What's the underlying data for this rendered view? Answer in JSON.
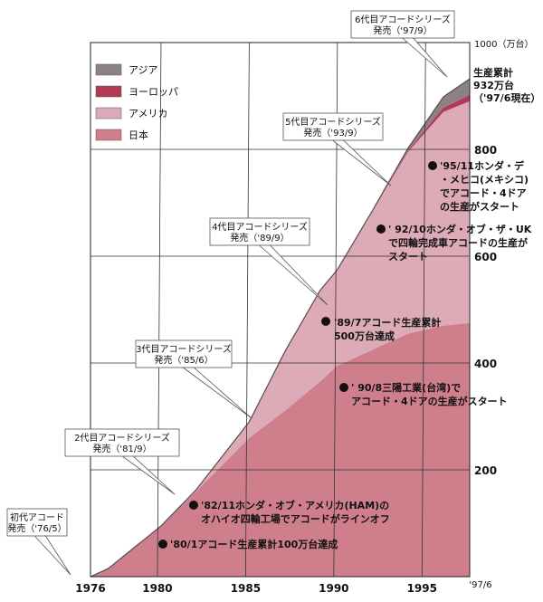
{
  "chart_data": {
    "type": "area",
    "stacked": true,
    "x_range": [
      1976,
      1997.5
    ],
    "ylim": [
      0,
      1000
    ],
    "y_unit_label": "1000（万台）",
    "x_ticks": [
      "1976",
      "1980",
      "1985",
      "1990",
      "1995",
      "'97/6"
    ],
    "x_tick_values": [
      1976,
      1980,
      1985,
      1990,
      1995,
      1997.5
    ],
    "y_ticks": [
      {
        "label": "200",
        "value": 200
      },
      {
        "label": "400",
        "value": 400
      },
      {
        "label": "600",
        "value": 600
      },
      {
        "label": "800",
        "value": 800
      }
    ],
    "grid": true,
    "legend_position": "top-left",
    "series": [
      {
        "name": "日本",
        "color": "#cf7f8c",
        "x": [
          1976,
          1977,
          1980,
          1982,
          1985,
          1987,
          1989,
          1990,
          1992,
          1994,
          1996,
          1997.5
        ],
        "values": [
          0,
          15,
          95,
          160,
          260,
          310,
          365,
          395,
          425,
          455,
          470,
          475
        ]
      },
      {
        "name": "アメリカ",
        "color": "#ddaab8",
        "x": [
          1976,
          1980,
          1982,
          1985,
          1987,
          1989,
          1990,
          1992,
          1994,
          1996,
          1997.5
        ],
        "values": [
          0,
          0,
          3,
          30,
          110,
          170,
          180,
          260,
          340,
          400,
          415
        ]
      },
      {
        "name": "ヨーロッパ",
        "color": "#b23a55",
        "x": [
          1976,
          1992,
          1994,
          1996,
          1997.5
        ],
        "values": [
          0,
          0,
          2,
          8,
          12
        ]
      },
      {
        "name": "アジア",
        "color": "#8e8185",
        "x": [
          1976,
          1990,
          1992,
          1994,
          1996,
          1997.5
        ],
        "values": [
          0,
          0,
          1,
          5,
          20,
          30
        ]
      }
    ],
    "total_label": {
      "lines": [
        "生産累計",
        "932万台",
        "（'97/6現在）"
      ]
    },
    "generation_callouts": [
      {
        "lines": [
          "初代アコード",
          "発売（'76/5）"
        ]
      },
      {
        "lines": [
          "2代目アコードシリーズ",
          "発売（'81/9）"
        ]
      },
      {
        "lines": [
          "3代目アコードシリーズ",
          "発売（'85/6）"
        ]
      },
      {
        "lines": [
          "4代目アコードシリーズ",
          "発売（'89/9）"
        ]
      },
      {
        "lines": [
          "5代目アコードシリーズ",
          "発売（'93/9）"
        ]
      },
      {
        "lines": [
          "6代目アコードシリーズ",
          "発売（'97/9）"
        ]
      }
    ],
    "milestones": [
      {
        "lines": [
          "'80/1アコード生産累計100万台達成"
        ]
      },
      {
        "lines": [
          "'82/11ホンダ・オブ・アメリカ(HAM)の",
          "オハイオ四輪工場でアコードがラインオフ"
        ]
      },
      {
        "lines": [
          "'89/7アコード生産累計",
          "500万台達成"
        ]
      },
      {
        "lines": [
          "' 90/8三陽工業(台湾)で",
          "アコード・4ドアの生産がスタート"
        ]
      },
      {
        "lines": [
          "' 92/10ホンダ・オブ・ザ・UK",
          "で四輪完成車アコードの生産が",
          "スタート"
        ]
      },
      {
        "lines": [
          "'95/11ホンダ・デ",
          "・メヒコ(メキシコ)",
          "でアコード・4ドア",
          "の生産がスタート"
        ]
      }
    ]
  }
}
